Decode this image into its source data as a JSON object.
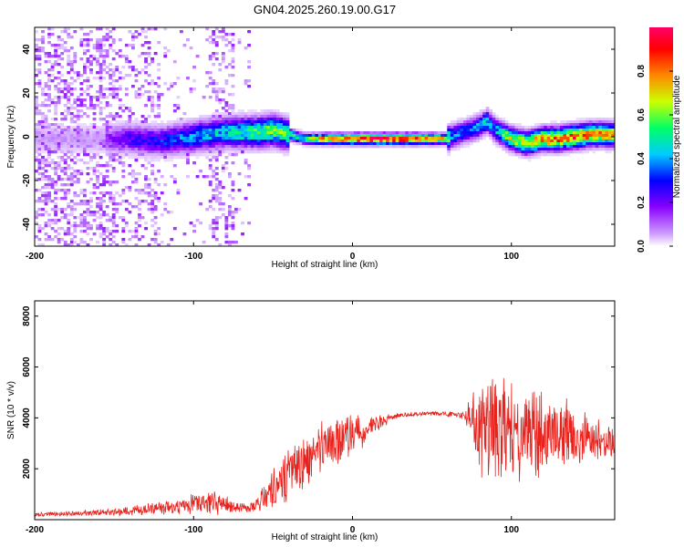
{
  "title": "GN04.2025.260.19.00.G17",
  "colors": {
    "snr_line": "#e8231e",
    "frame": "#000000",
    "background": "#ffffff"
  },
  "chart_data": [
    {
      "type": "heatmap",
      "name": "spectrogram",
      "xlabel": "Height of straight line (km)",
      "ylabel": "Frequency (Hz)",
      "xlim": [
        -200,
        165
      ],
      "ylim": [
        -50,
        50
      ],
      "xticks": [
        -200,
        -100,
        0,
        100
      ],
      "yticks": [
        -40,
        -20,
        0,
        20,
        40
      ],
      "colorbar": {
        "label": "Normalized spectral amplitude",
        "range": [
          0,
          1
        ],
        "ticks": [
          "0.0",
          "0.2",
          "0.4",
          "0.6",
          "0.8"
        ],
        "tick_values": [
          0.0,
          0.2,
          0.4,
          0.6,
          0.8
        ],
        "colormap": [
          "#ffffff",
          "#cc99ff",
          "#8800ff",
          "#0000ff",
          "#00ccff",
          "#00ff66",
          "#ccff00",
          "#ff8800",
          "#ff0000",
          "#ff0066"
        ]
      },
      "ridge": {
        "description": "dominant frequency vs height",
        "x": [
          -155,
          -140,
          -120,
          -100,
          -80,
          -60,
          -50,
          -40,
          -30,
          -20,
          0,
          20,
          40,
          60,
          62,
          70,
          78,
          85,
          90,
          95,
          100,
          110,
          120,
          130,
          140,
          150,
          165
        ],
        "freq": [
          -1,
          -1,
          -2,
          0,
          2,
          2,
          3,
          1,
          -1,
          -1,
          -1,
          -1,
          -1,
          -1,
          0,
          2,
          4,
          7,
          3,
          1,
          -1,
          -3,
          -1,
          -1,
          0,
          1,
          1
        ],
        "amplitude": [
          0.2,
          0.3,
          0.35,
          0.45,
          0.5,
          0.6,
          0.65,
          0.6,
          0.55,
          0.8,
          0.95,
          1.0,
          0.95,
          0.7,
          0.45,
          0.4,
          0.45,
          0.5,
          0.45,
          0.6,
          0.7,
          0.75,
          0.85,
          0.85,
          0.9,
          0.85,
          0.75
        ]
      },
      "noise_region": [
        -200,
        -65
      ]
    },
    {
      "type": "line",
      "name": "snr",
      "xlabel": "Height of straight line (km)",
      "ylabel": "SNR (10 * v/v)",
      "xlim": [
        -200,
        165
      ],
      "ylim": [
        0,
        8600
      ],
      "xticks": [
        -200,
        -100,
        0,
        100
      ],
      "yticks": [
        2000,
        4000,
        6000,
        8000
      ],
      "envelope": {
        "x": [
          -200,
          -170,
          -150,
          -130,
          -110,
          -95,
          -85,
          -75,
          -65,
          -60,
          -55,
          -50,
          -45,
          -40,
          -35,
          -30,
          -25,
          -20,
          -10,
          0,
          10,
          20,
          25,
          30,
          40,
          50,
          60,
          70,
          75,
          78,
          82,
          86,
          90,
          95,
          100,
          110,
          120,
          130,
          140,
          150,
          160,
          165
        ],
        "mean": [
          200,
          250,
          300,
          400,
          550,
          650,
          700,
          500,
          400,
          600,
          900,
          1100,
          1400,
          1800,
          2100,
          2300,
          2600,
          2800,
          3000,
          3300,
          3600,
          3900,
          4050,
          4100,
          4150,
          4180,
          4150,
          4100,
          4000,
          3800,
          3700,
          3600,
          3600,
          3500,
          3600,
          3500,
          3400,
          3300,
          3300,
          3200,
          3100,
          3000
        ],
        "amp": [
          100,
          120,
          150,
          250,
          350,
          500,
          550,
          300,
          200,
          400,
          700,
          900,
          1100,
          1300,
          1300,
          1300,
          1300,
          1200,
          1100,
          900,
          600,
          300,
          150,
          120,
          100,
          100,
          120,
          150,
          900,
          2000,
          2500,
          3000,
          2800,
          2600,
          2400,
          2200,
          2000,
          1700,
          1300,
          1000,
          800,
          700
        ]
      }
    }
  ]
}
